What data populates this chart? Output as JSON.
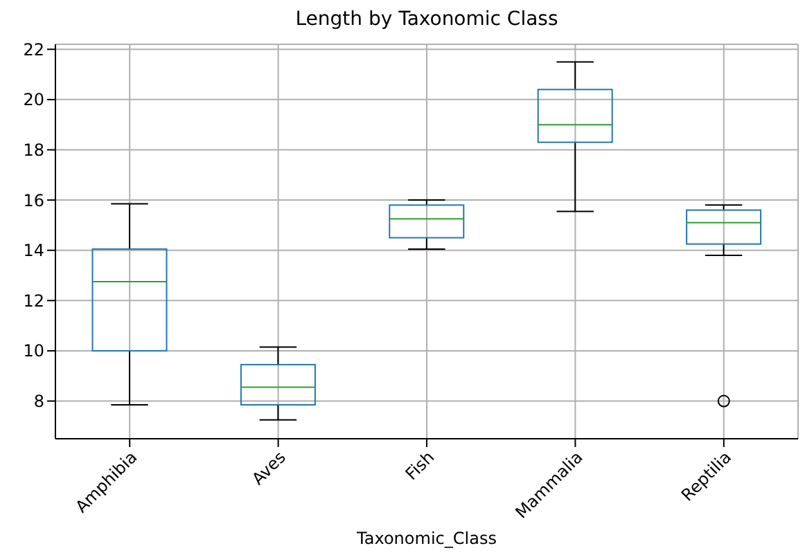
{
  "chart_data": {
    "type": "box",
    "title": "Length by Taxonomic Class",
    "xlabel": "Taxonomic_Class",
    "categories": [
      "Amphibia",
      "Aves",
      "Fish",
      "Mammalia",
      "Reptilia"
    ],
    "color": "#1f77b4",
    "boxes": [
      {
        "low": 7.85,
        "q1": 10.0,
        "median": 12.75,
        "q3": 14.05,
        "high": 15.85
      },
      {
        "low": 7.25,
        "q1": 7.85,
        "median": 8.55,
        "q3": 9.45,
        "high": 10.15
      },
      {
        "low": 14.05,
        "q1": 14.5,
        "median": 15.25,
        "q3": 15.8,
        "high": 16.0
      },
      {
        "low": 15.55,
        "q1": 18.3,
        "median": 19.0,
        "q3": 20.4,
        "high": 21.5
      },
      {
        "low": 13.8,
        "q1": 14.25,
        "median": 15.1,
        "q3": 15.6,
        "high": 15.8,
        "outliers": [
          8.0
        ]
      }
    ],
    "ylim": [
      6.5,
      22.2
    ],
    "yticks": [
      8,
      10,
      12,
      14,
      16,
      18,
      20,
      22
    ],
    "grid": true,
    "marker": "circle"
  }
}
